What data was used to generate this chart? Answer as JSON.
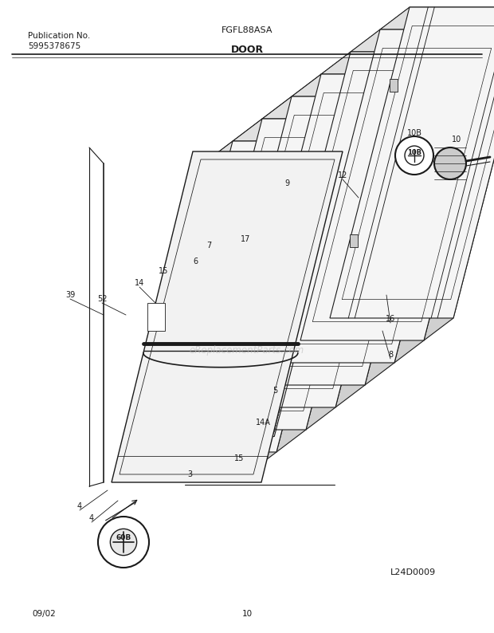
{
  "title_model": "FGFL88ASA",
  "title_section": "DOOR",
  "pub_no_label": "Publication No.",
  "pub_no": "5995378675",
  "date": "09/02",
  "page": "10",
  "diagram_id": "L24D0009",
  "watermark": "eReplacementParts.com",
  "bg_color": "#ffffff",
  "line_color": "#1a1a1a"
}
